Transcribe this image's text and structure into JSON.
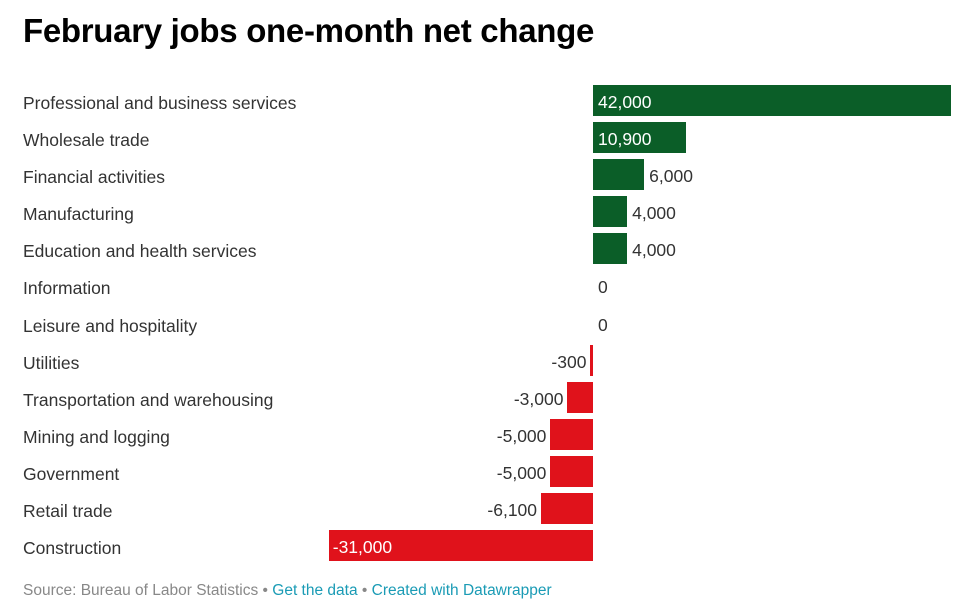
{
  "title": "February jobs one-month net change",
  "colors": {
    "positive": "#0b5e28",
    "negative": "#e0121b"
  },
  "footer": {
    "source": "Source: Bureau of Labor Statistics",
    "separator": " • ",
    "get_data": "Get the data",
    "created_with": "Created with Datawrapper"
  },
  "chart_data": {
    "type": "bar",
    "orientation": "horizontal",
    "title": "February jobs one-month net change",
    "categories": [
      "Professional and business services",
      "Wholesale trade",
      "Financial activities",
      "Manufacturing",
      "Education and health services",
      "Information",
      "Leisure and hospitality",
      "Utilities",
      "Transportation and warehousing",
      "Mining and logging",
      "Government",
      "Retail trade",
      "Construction"
    ],
    "values": [
      42000,
      10900,
      6000,
      4000,
      4000,
      0,
      0,
      -300,
      -3000,
      -5000,
      -5000,
      -6100,
      -31000
    ],
    "labels": [
      "42,000",
      "10,900",
      "6,000",
      "4,000",
      "4,000",
      "0",
      "0",
      "-300",
      "-3,000",
      "-5,000",
      "-5,000",
      "-6,100",
      "-31,000"
    ],
    "xlim": [
      -31000,
      42000
    ],
    "grid": false,
    "legend": "none"
  }
}
